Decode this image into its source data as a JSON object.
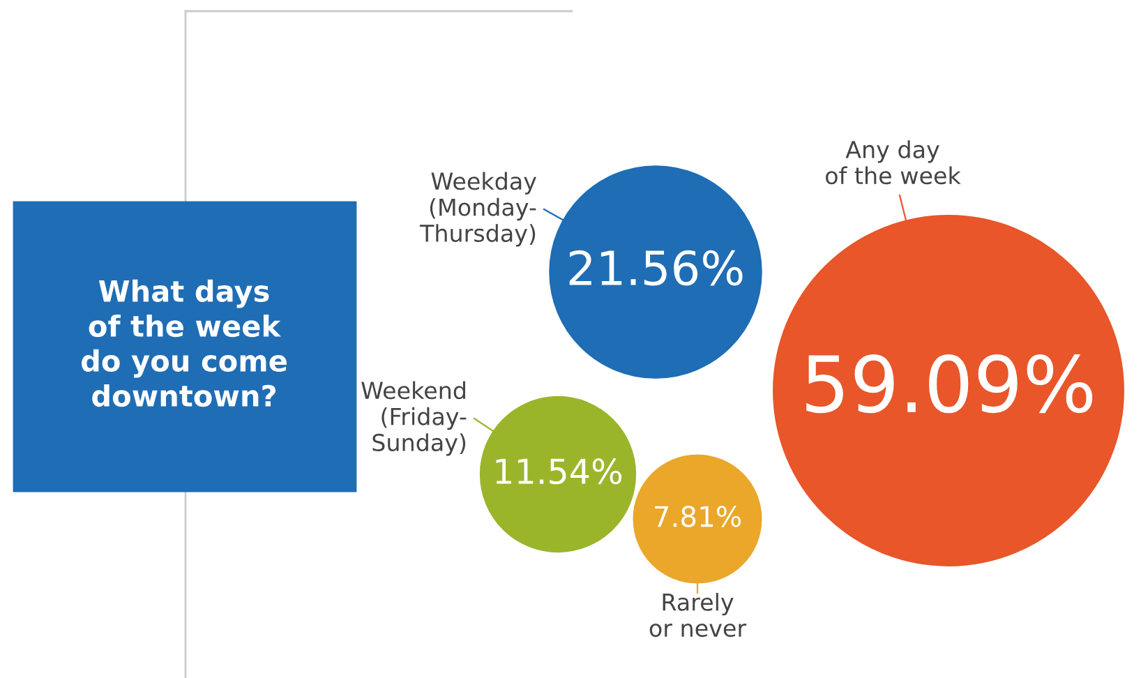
{
  "chart_data": {
    "type": "other",
    "title": "What days\nof the week\ndo you come\ndowntown?",
    "categories": [
      "Any day\nof the week",
      "Weekday\n(Monday-\nThursday)",
      "Weekend\n(Friday-\nSunday)",
      "Rarely\nor never"
    ],
    "values": [
      59.09,
      21.56,
      11.54,
      7.81
    ],
    "value_labels": [
      "59.09%",
      "21.56%",
      "11.54%",
      "7.81%"
    ],
    "colors": [
      "#e8562a",
      "#1f6db5",
      "#9bb52b",
      "#eaa72a"
    ]
  }
}
